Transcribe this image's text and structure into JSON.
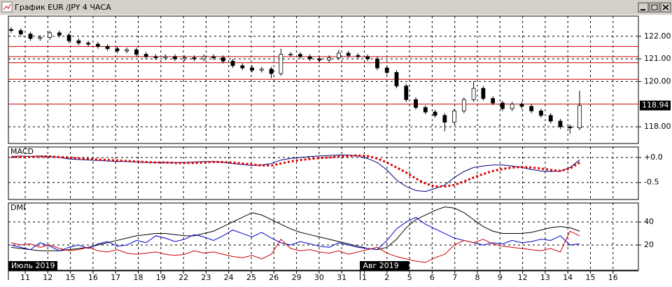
{
  "window": {
    "title": "График EUR /JPY  4 ЧАСА"
  },
  "x_axis": {
    "days": [
      "11",
      "12",
      "15",
      "16",
      "17",
      "18",
      "19",
      "22",
      "23",
      "24",
      "25",
      "26",
      "29",
      "30",
      "31",
      "1",
      "2",
      "5",
      "6",
      "7",
      "8",
      "9",
      "12",
      "13",
      "14",
      "15",
      "16"
    ],
    "month_labels": [
      "Июль 2019",
      "Авг 2019"
    ]
  },
  "chart_data": [
    {
      "type": "candlestick",
      "open": [
        122.3,
        122.25,
        122.1,
        121.9,
        121.95,
        122.15,
        122.05,
        121.8,
        121.7,
        121.65,
        121.55,
        121.45,
        121.35,
        121.4,
        121.2,
        121.1,
        121.05,
        121.1,
        121.0,
        121.05,
        121.0,
        121.1,
        121.05,
        120.9,
        120.7,
        120.6,
        120.5,
        120.55,
        120.35,
        121.2,
        121.2,
        121.1,
        121.0,
        120.95,
        121.05,
        121.25,
        121.15,
        121.1,
        121.0,
        120.6,
        120.4,
        119.8,
        119.2,
        118.85,
        118.65,
        118.5,
        118.2,
        118.7,
        119.2,
        119.7,
        119.25,
        119.05,
        118.8,
        119.0,
        118.9,
        118.7,
        118.5,
        118.25,
        118.0,
        117.95
      ],
      "high": [
        122.4,
        122.35,
        122.2,
        122.05,
        122.25,
        122.25,
        122.15,
        121.9,
        121.8,
        121.75,
        121.65,
        121.55,
        121.5,
        121.5,
        121.3,
        121.2,
        121.2,
        121.2,
        121.15,
        121.15,
        121.2,
        121.2,
        121.15,
        121.0,
        120.8,
        120.7,
        120.65,
        120.65,
        121.45,
        121.3,
        121.3,
        121.2,
        121.1,
        121.15,
        121.4,
        121.35,
        121.25,
        121.2,
        121.1,
        120.7,
        120.5,
        119.9,
        119.3,
        118.95,
        118.75,
        118.6,
        118.8,
        119.3,
        120.0,
        119.8,
        119.35,
        119.15,
        119.1,
        119.1,
        119.0,
        118.8,
        118.6,
        118.35,
        118.1,
        119.6
      ],
      "low": [
        122.15,
        122.0,
        121.8,
        121.8,
        121.85,
        121.95,
        121.7,
        121.6,
        121.55,
        121.45,
        121.35,
        121.25,
        121.25,
        121.1,
        121.0,
        120.95,
        120.95,
        120.9,
        120.9,
        120.9,
        120.9,
        120.95,
        120.8,
        120.6,
        120.5,
        120.4,
        120.4,
        120.15,
        120.25,
        121.1,
        121.0,
        120.9,
        120.85,
        120.85,
        120.95,
        121.05,
        121.0,
        120.9,
        120.5,
        120.3,
        119.7,
        119.1,
        118.75,
        118.55,
        118.4,
        117.8,
        118.1,
        118.6,
        119.1,
        119.15,
        118.95,
        118.7,
        118.7,
        118.8,
        118.6,
        118.4,
        118.15,
        117.9,
        117.7,
        117.85
      ],
      "close": [
        122.25,
        122.1,
        121.9,
        121.95,
        122.15,
        122.05,
        121.8,
        121.7,
        121.65,
        121.55,
        121.45,
        121.35,
        121.4,
        121.2,
        121.1,
        121.05,
        121.1,
        121.0,
        121.05,
        121.0,
        121.1,
        121.05,
        120.9,
        120.7,
        120.6,
        120.5,
        120.55,
        120.35,
        121.2,
        121.2,
        121.1,
        121.0,
        120.95,
        121.05,
        121.25,
        121.15,
        121.1,
        121.0,
        120.6,
        120.4,
        119.8,
        119.2,
        118.85,
        118.65,
        118.5,
        118.2,
        118.7,
        119.2,
        119.7,
        119.25,
        119.05,
        118.8,
        119.0,
        118.9,
        118.7,
        118.5,
        118.25,
        118.0,
        117.95,
        118.94
      ],
      "levels": [
        121.55,
        121.1,
        120.83,
        120.1,
        119.0
      ],
      "level_color": "#cc0000",
      "current": {
        "value": 118.94,
        "label": "118.94"
      },
      "ylim": [
        117.26,
        122.89
      ],
      "yticks": [
        {
          "value": 122,
          "label": "122.00"
        },
        {
          "value": 121,
          "label": "121.00"
        },
        {
          "value": 120,
          "label": "120.00"
        },
        {
          "value": 118,
          "label": "118.00"
        }
      ],
      "grid": true
    },
    {
      "type": "line",
      "title": "MACD",
      "series": [
        {
          "color": "#000080",
          "style": "solid",
          "values": [
            0.02,
            0.03,
            0.02,
            0.03,
            0.02,
            0.0,
            -0.03,
            -0.04,
            -0.05,
            -0.06,
            -0.07,
            -0.08,
            -0.08,
            -0.09,
            -0.1,
            -0.1,
            -0.1,
            -0.1,
            -0.1,
            -0.09,
            -0.08,
            -0.08,
            -0.1,
            -0.12,
            -0.14,
            -0.16,
            -0.15,
            -0.12,
            -0.05,
            -0.02,
            0.0,
            0.02,
            0.03,
            0.04,
            0.05,
            0.05,
            0.03,
            -0.02,
            -0.1,
            -0.25,
            -0.45,
            -0.58,
            -0.66,
            -0.68,
            -0.62,
            -0.55,
            -0.4,
            -0.28,
            -0.2,
            -0.17,
            -0.15,
            -0.15,
            -0.17,
            -0.2,
            -0.24,
            -0.27,
            -0.28,
            -0.27,
            -0.2,
            -0.05
          ]
        },
        {
          "color": "#dd0000",
          "style": "dotted",
          "values": [
            0.01,
            0.01,
            0.01,
            0.02,
            0.02,
            0.01,
            0.0,
            -0.02,
            -0.03,
            -0.04,
            -0.05,
            -0.06,
            -0.07,
            -0.08,
            -0.09,
            -0.1,
            -0.1,
            -0.11,
            -0.11,
            -0.11,
            -0.1,
            -0.09,
            -0.09,
            -0.1,
            -0.12,
            -0.14,
            -0.16,
            -0.16,
            -0.12,
            -0.08,
            -0.05,
            -0.03,
            -0.01,
            0.0,
            0.02,
            0.03,
            0.04,
            0.03,
            -0.02,
            -0.1,
            -0.2,
            -0.3,
            -0.42,
            -0.52,
            -0.58,
            -0.58,
            -0.55,
            -0.48,
            -0.4,
            -0.33,
            -0.27,
            -0.23,
            -0.2,
            -0.19,
            -0.2,
            -0.22,
            -0.25,
            -0.27,
            -0.22,
            -0.1
          ]
        }
      ],
      "ylim": [
        -0.84,
        0.21
      ],
      "yticks": [
        {
          "value": 0,
          "label": "+0.0"
        },
        {
          "value": -0.5,
          "label": "-0.5"
        }
      ],
      "grid": true
    },
    {
      "type": "line",
      "title": "DMI",
      "series": [
        {
          "color": "#000000",
          "style": "solid",
          "values": [
            18,
            17,
            16,
            15,
            15,
            15,
            16,
            17,
            18,
            20,
            22,
            24,
            26,
            28,
            29,
            30,
            30,
            29,
            28,
            28,
            30,
            32,
            36,
            40,
            44,
            48,
            46,
            42,
            38,
            34,
            31,
            29,
            27,
            25,
            23,
            21,
            19,
            17,
            16,
            18,
            25,
            35,
            42,
            46,
            50,
            53,
            52,
            48,
            42,
            36,
            32,
            30,
            30,
            30,
            31,
            33,
            35,
            36,
            35,
            32
          ]
        },
        {
          "color": "#0000cc",
          "style": "solid",
          "values": [
            20,
            18,
            16,
            22,
            19,
            15,
            18,
            20,
            17,
            21,
            23,
            19,
            20,
            24,
            22,
            28,
            26,
            23,
            25,
            29,
            27,
            24,
            28,
            33,
            30,
            27,
            31,
            26,
            22,
            20,
            23,
            21,
            19,
            18,
            22,
            20,
            18,
            17,
            16,
            24,
            34,
            40,
            44,
            38,
            34,
            30,
            26,
            24,
            22,
            20,
            22,
            21,
            24,
            22,
            23,
            25,
            24,
            28,
            20,
            21
          ]
        },
        {
          "color": "#cc0000",
          "style": "solid",
          "values": [
            22,
            20,
            21,
            18,
            20,
            17,
            15,
            16,
            18,
            15,
            14,
            16,
            13,
            12,
            13,
            14,
            12,
            11,
            12,
            15,
            13,
            14,
            12,
            10,
            9,
            11,
            8,
            12,
            25,
            17,
            15,
            16,
            14,
            13,
            15,
            12,
            14,
            16,
            18,
            13,
            10,
            8,
            6,
            5,
            9,
            12,
            20,
            24,
            22,
            25,
            21,
            19,
            18,
            17,
            16,
            15,
            17,
            14,
            32,
            28
          ]
        }
      ],
      "ylim": [
        -1.8,
        56.4
      ],
      "yticks": [
        40,
        20
      ],
      "grid": true
    }
  ]
}
